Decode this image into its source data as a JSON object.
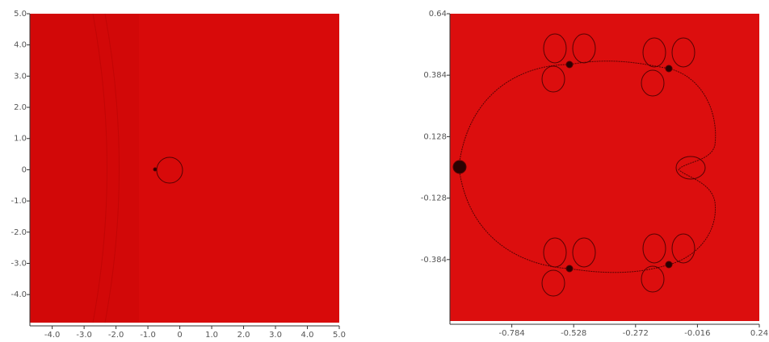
{
  "chart_data": [
    {
      "type": "image",
      "color": "#d80a0a",
      "xlim": [
        -4.7,
        5
      ],
      "ylim": [
        -4.9,
        5
      ],
      "xticks": [
        {
          "value": -4,
          "label": "-4.0"
        },
        {
          "value": -3,
          "label": "-3.0"
        },
        {
          "value": -2,
          "label": "-2.0"
        },
        {
          "value": -1,
          "label": "-1.0"
        },
        0,
        {
          "value": 1,
          "label": "1.0"
        },
        {
          "value": 2,
          "label": "2.0"
        },
        {
          "value": 3,
          "label": "3.0"
        },
        {
          "value": 4,
          "label": "4.0"
        },
        {
          "value": 5,
          "label": "5.0"
        }
      ],
      "yticks": [
        {
          "value": 5,
          "label": "5.0"
        },
        {
          "value": 4,
          "label": "4.0"
        },
        {
          "value": 3,
          "label": "3.0"
        },
        {
          "value": 2,
          "label": "2.0"
        },
        {
          "value": 1,
          "label": "1.0"
        },
        0,
        {
          "value": -1,
          "label": "-1.0"
        },
        {
          "value": -2,
          "label": "-2.0"
        },
        {
          "value": -3,
          "label": "-3.0"
        },
        {
          "value": -4,
          "label": "-4.0"
        }
      ]
    },
    {
      "type": "image",
      "color": "#dc0e0e",
      "xlim": [
        -1.04,
        0.24
      ],
      "ylim": [
        -0.64,
        0.64
      ],
      "xticks": [
        -0.784,
        -0.528,
        -0.272,
        -0.016,
        0.24
      ],
      "yticks": [
        0.64,
        0.384,
        0.128,
        -0.128,
        -0.384
      ]
    }
  ]
}
